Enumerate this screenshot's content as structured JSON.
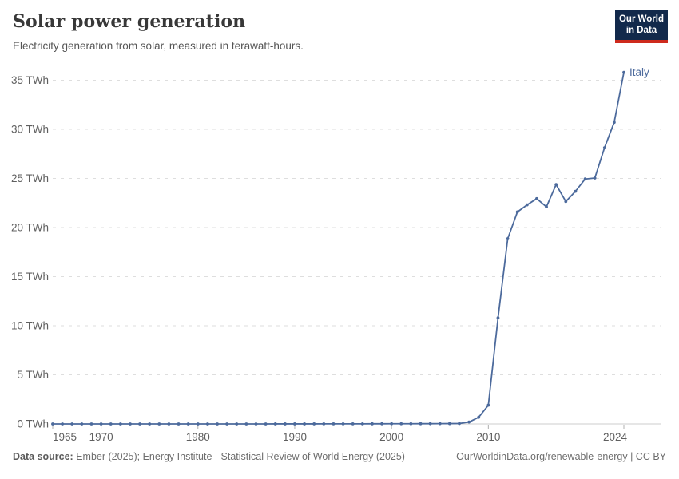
{
  "header": {
    "title": "Solar power generation",
    "subtitle": "Electricity generation from solar, measured in terawatt-hours."
  },
  "logo": {
    "line1": "Our World",
    "line2": "in Data",
    "bg_color": "#12294B",
    "accent_color": "#CE2A1D"
  },
  "footer": {
    "source_label": "Data source:",
    "source_text": " Ember (2025); Energy Institute - Statistical Review of World Energy (2025)",
    "credit": "OurWorldinData.org/renewable-energy | CC BY"
  },
  "chart_data": {
    "type": "line",
    "title": "Solar power generation",
    "xlabel": "",
    "ylabel": "",
    "grid": "horizontal-dashed",
    "legend": "end-of-line-label",
    "xlim": [
      1965,
      2024
    ],
    "ylim": [
      0,
      36.5
    ],
    "x_ticks": [
      1965,
      1970,
      1980,
      1990,
      2000,
      2010,
      2024
    ],
    "y_ticks": [
      0,
      5,
      10,
      15,
      20,
      25,
      30,
      35
    ],
    "y_tick_suffix": " TWh",
    "line_color": "#4C6A9C",
    "gridline_color": "#dedede",
    "axis_line_color": "#cccccc",
    "tick_color": "#b0b0b0",
    "tick_label_color": "#5f5f5f",
    "series": [
      {
        "name": "Italy",
        "color": "#4C6A9C",
        "points": [
          [
            1965,
            0
          ],
          [
            1966,
            0
          ],
          [
            1967,
            0
          ],
          [
            1968,
            0
          ],
          [
            1969,
            0
          ],
          [
            1970,
            0
          ],
          [
            1971,
            0
          ],
          [
            1972,
            0
          ],
          [
            1973,
            0
          ],
          [
            1974,
            0
          ],
          [
            1975,
            0
          ],
          [
            1976,
            0
          ],
          [
            1977,
            0
          ],
          [
            1978,
            0
          ],
          [
            1979,
            0
          ],
          [
            1980,
            0
          ],
          [
            1981,
            0
          ],
          [
            1982,
            0
          ],
          [
            1983,
            0
          ],
          [
            1984,
            0
          ],
          [
            1985,
            0.002
          ],
          [
            1986,
            0.002
          ],
          [
            1987,
            0.002
          ],
          [
            1988,
            0.003
          ],
          [
            1989,
            0.003
          ],
          [
            1990,
            0.004
          ],
          [
            1991,
            0.005
          ],
          [
            1992,
            0.006
          ],
          [
            1993,
            0.007
          ],
          [
            1994,
            0.009
          ],
          [
            1995,
            0.011
          ],
          [
            1996,
            0.012
          ],
          [
            1997,
            0.013
          ],
          [
            1998,
            0.014
          ],
          [
            1999,
            0.016
          ],
          [
            2000,
            0.018
          ],
          [
            2001,
            0.019
          ],
          [
            2002,
            0.021
          ],
          [
            2003,
            0.024
          ],
          [
            2004,
            0.027
          ],
          [
            2005,
            0.031
          ],
          [
            2006,
            0.035
          ],
          [
            2007,
            0.039
          ],
          [
            2008,
            0.193
          ],
          [
            2009,
            0.676
          ],
          [
            2010,
            1.906
          ],
          [
            2011,
            10.796
          ],
          [
            2012,
            18.862
          ],
          [
            2013,
            21.589
          ],
          [
            2014,
            22.306
          ],
          [
            2015,
            22.942
          ],
          [
            2016,
            22.104
          ],
          [
            2017,
            24.378
          ],
          [
            2018,
            22.654
          ],
          [
            2019,
            23.689
          ],
          [
            2020,
            24.942
          ],
          [
            2021,
            25.039
          ],
          [
            2022,
            28.121
          ],
          [
            2023,
            30.711
          ],
          [
            2024,
            35.8
          ]
        ]
      }
    ]
  }
}
